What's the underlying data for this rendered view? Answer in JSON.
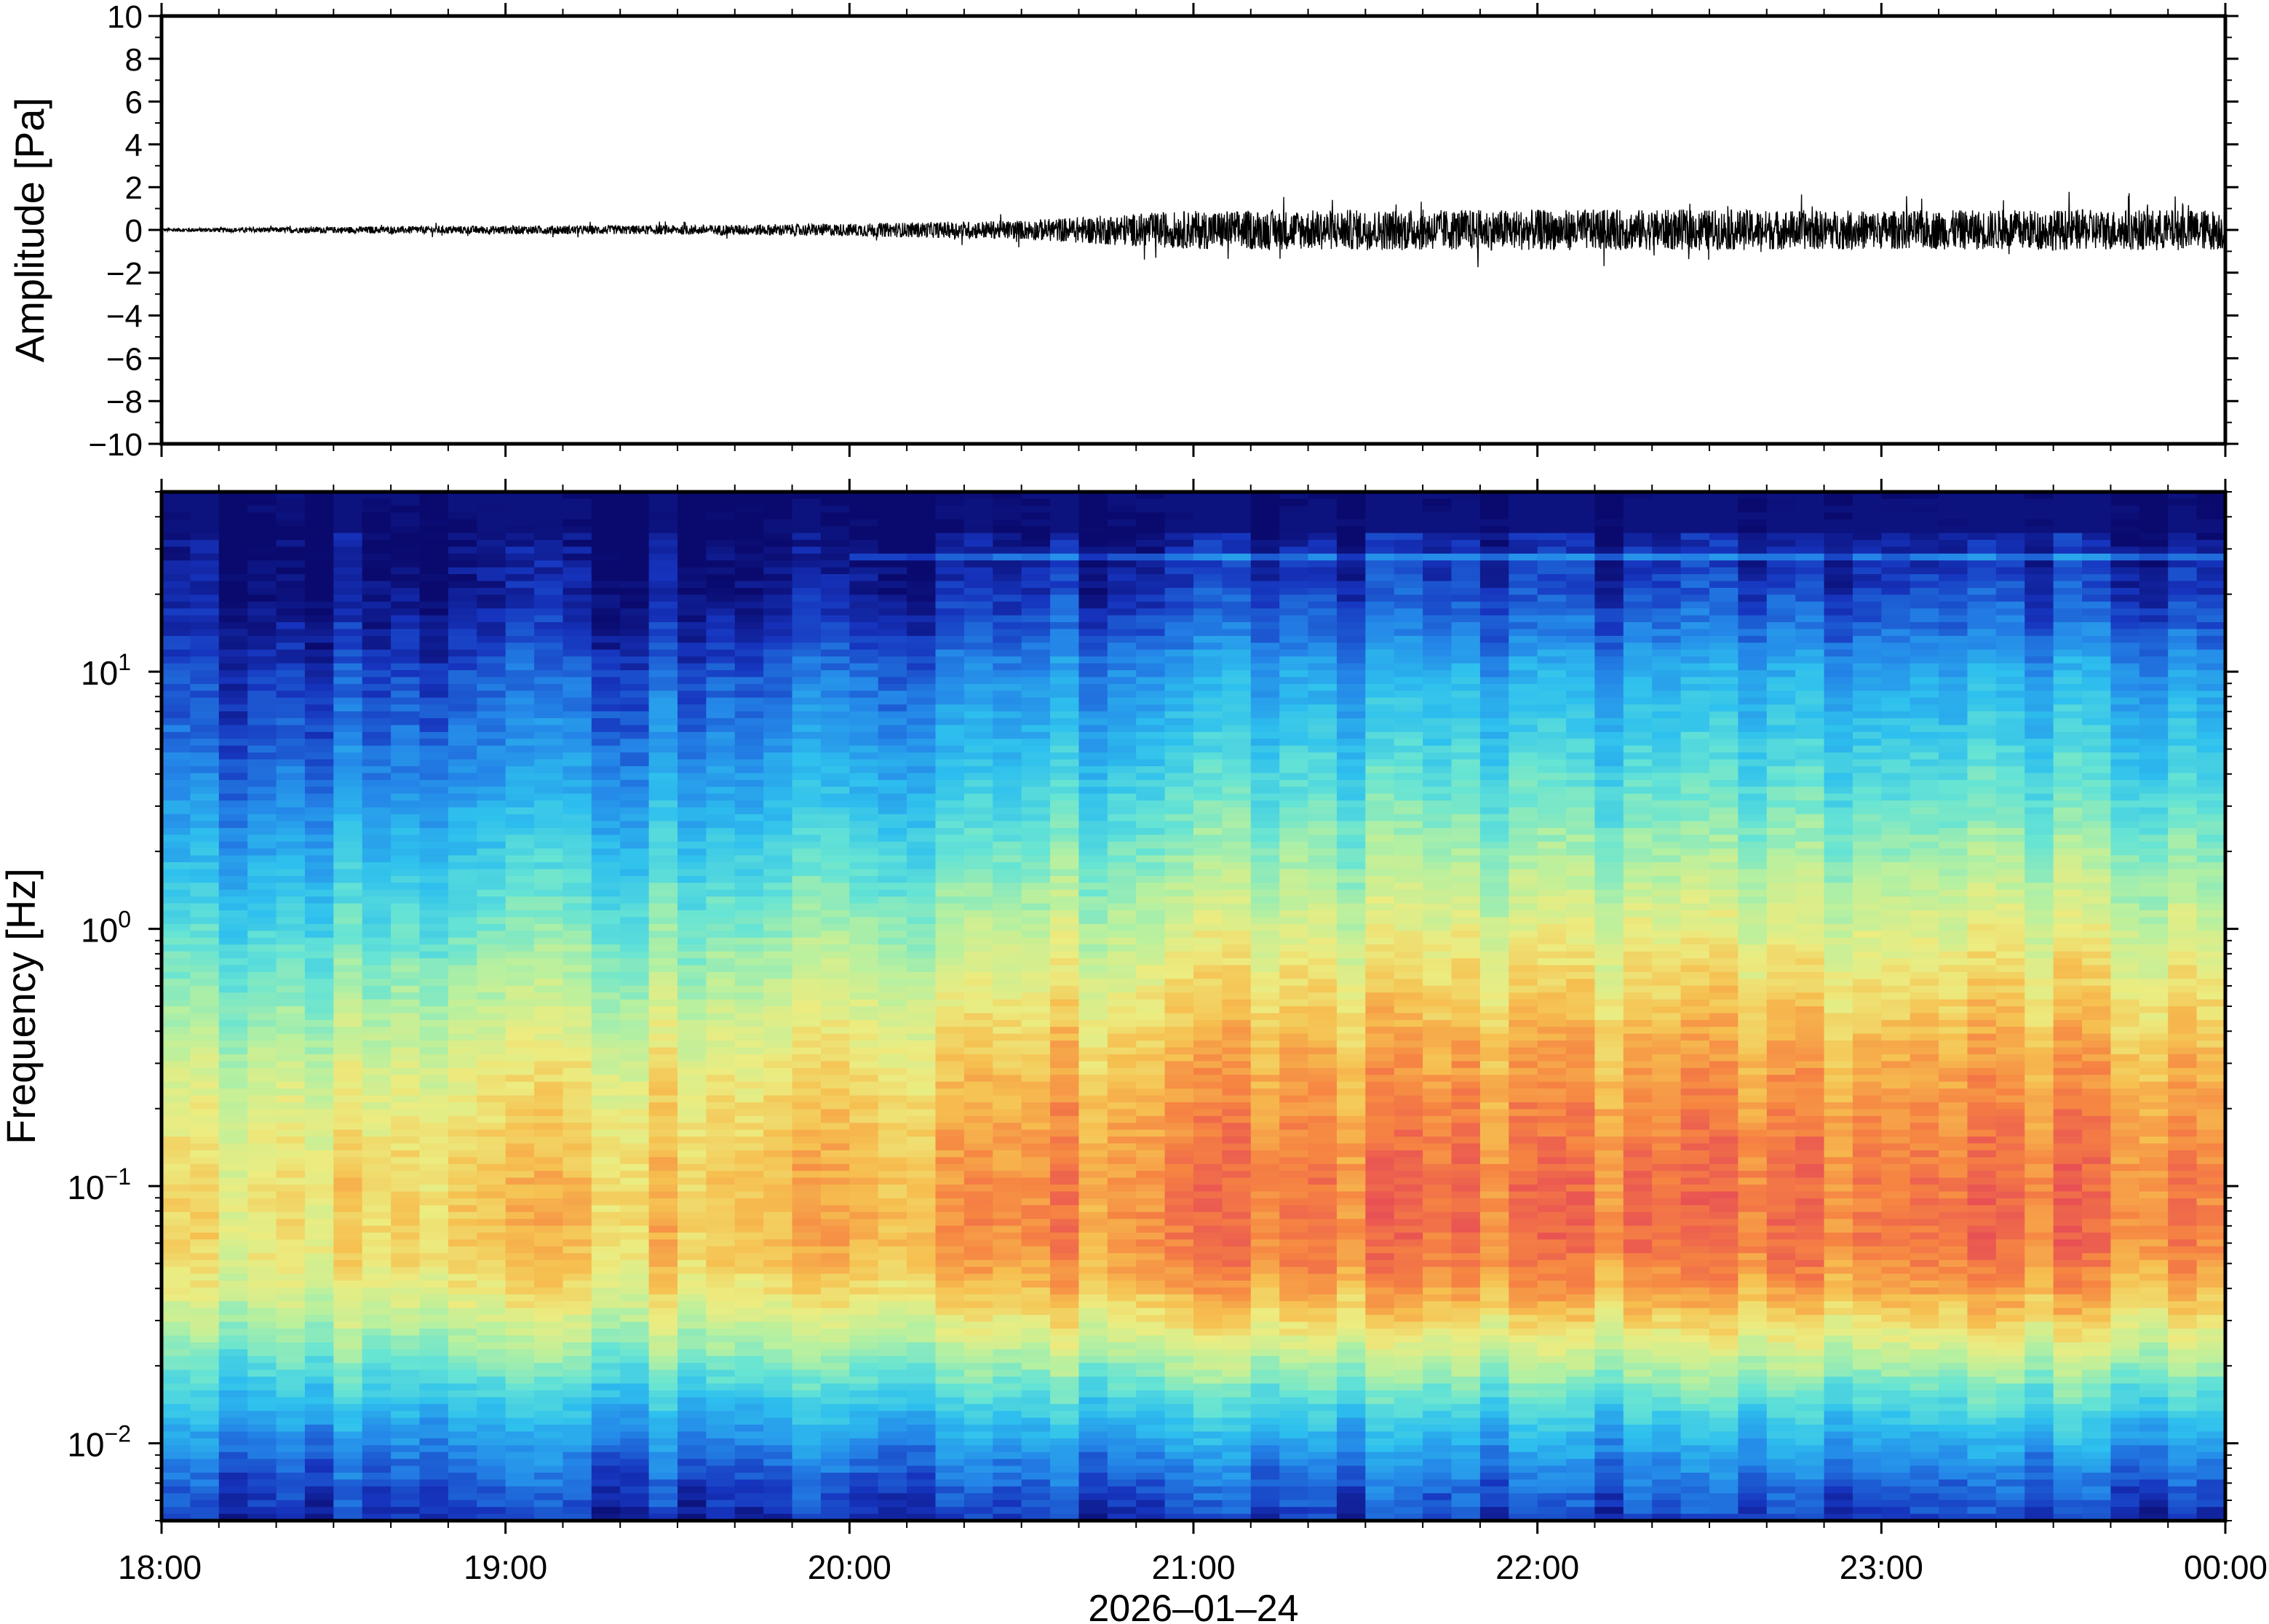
{
  "chart_data": [
    {
      "type": "line",
      "ylabel": "Amplitude [Pa]",
      "ylim": [
        -10,
        10
      ],
      "yticks": [
        "10",
        "8",
        "6",
        "4",
        "2",
        "0",
        "−2",
        "−4",
        "−6",
        "−8",
        "−10"
      ],
      "yticks_values": [
        10,
        8,
        6,
        4,
        2,
        0,
        -2,
        -4,
        -6,
        -8,
        -10
      ],
      "xlim": [
        "18:00",
        "00:00"
      ],
      "envelope": {
        "x_hours": [
          18.0,
          18.5,
          19.0,
          19.5,
          20.0,
          20.5,
          20.75,
          21.0,
          21.5,
          22.0,
          22.5,
          23.0,
          23.5,
          24.0
        ],
        "amplitude_pa": [
          0.08,
          0.15,
          0.2,
          0.22,
          0.3,
          0.45,
          0.7,
          0.9,
          0.95,
          0.95,
          0.95,
          0.9,
          0.95,
          0.95
        ]
      },
      "series_color": "#000000"
    },
    {
      "type": "heatmap",
      "ylabel": "Frequency [Hz]",
      "yscale": "log",
      "ylim": [
        0.005,
        50
      ],
      "yticks": [
        {
          "base": "10",
          "exp": "1",
          "value": 10
        },
        {
          "base": "10",
          "exp": "0",
          "value": 1
        },
        {
          "base": "10",
          "exp": "−1",
          "value": 0.1
        },
        {
          "base": "10",
          "exp": "−2",
          "value": 0.01
        }
      ],
      "colormap": "rainbow (dark blue = low power, red = high power)",
      "xlabel": "2026–01–24",
      "xticks": [
        "18:00",
        "19:00",
        "20:00",
        "21:00",
        "22:00",
        "23:00",
        "00:00"
      ],
      "xticks_hours": [
        18,
        19,
        20,
        21,
        22,
        23,
        24
      ],
      "peak_frequency_hz": 0.07,
      "narrowband_line_hz": 28
    }
  ]
}
